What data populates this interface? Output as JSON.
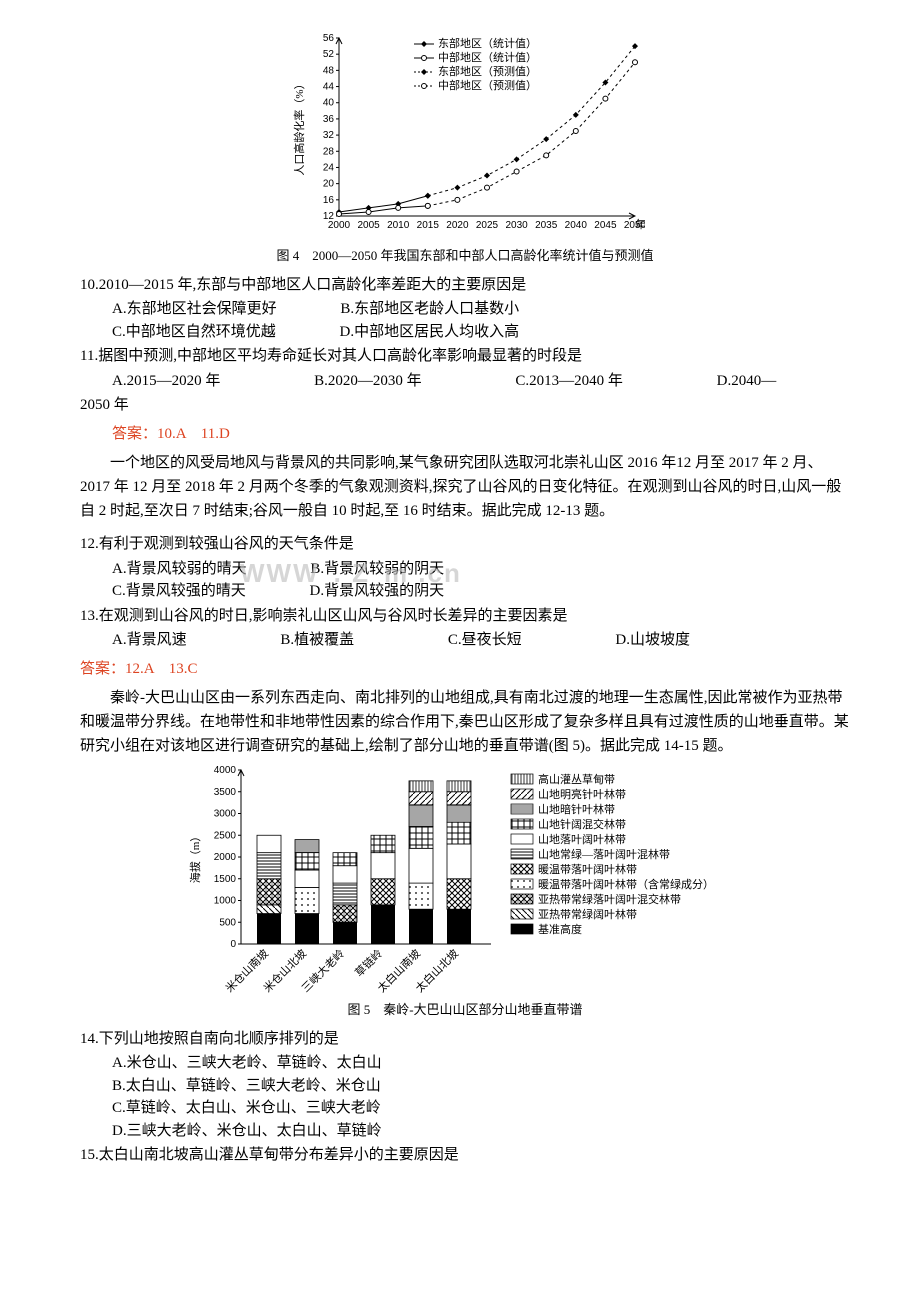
{
  "fig4": {
    "caption": "图 4　2000—2050 年我国东部和中部人口高龄化率统计值与预测值",
    "ylabel": "人口高龄化率（%）",
    "xlabel": "年",
    "x_ticks": [
      2000,
      2005,
      2010,
      2015,
      2020,
      2025,
      2030,
      2035,
      2040,
      2045,
      2050
    ],
    "y_ticks": [
      12,
      16,
      20,
      24,
      28,
      32,
      36,
      40,
      44,
      48,
      52,
      56
    ],
    "ylim": [
      12,
      56
    ],
    "xlim": [
      2000,
      2050
    ],
    "legend": [
      {
        "label": "东部地区（统计值）",
        "marker": "diamond-fill"
      },
      {
        "label": "中部地区（统计值）",
        "marker": "circle-open"
      },
      {
        "label": "东部地区（预测值）",
        "marker": "diamond-dot"
      },
      {
        "label": "中部地区（预测值）",
        "marker": "circle-dot"
      }
    ],
    "series": {
      "east_stat": {
        "x": [
          2000,
          2005,
          2010,
          2015
        ],
        "y": [
          13,
          14,
          15,
          17
        ],
        "color": "#000",
        "dash": "",
        "marker": "diamond-fill"
      },
      "mid_stat": {
        "x": [
          2000,
          2005,
          2010,
          2015
        ],
        "y": [
          12.5,
          13,
          14,
          14.5
        ],
        "color": "#000",
        "dash": "",
        "marker": "circle-open"
      },
      "east_pred": {
        "x": [
          2015,
          2020,
          2025,
          2030,
          2035,
          2040,
          2045,
          2050
        ],
        "y": [
          17,
          19,
          22,
          26,
          31,
          37,
          45,
          54
        ],
        "color": "#000",
        "dash": "3,3",
        "marker": "diamond-fill"
      },
      "mid_pred": {
        "x": [
          2015,
          2020,
          2025,
          2030,
          2035,
          2040,
          2045,
          2050
        ],
        "y": [
          14.5,
          16,
          19,
          23,
          27,
          33,
          41,
          50
        ],
        "color": "#000",
        "dash": "3,3",
        "marker": "circle-open"
      }
    },
    "plot_bg": "#ffffff",
    "axis_color": "#000"
  },
  "q10": {
    "text": "10.2010—2015 年,东部与中部地区人口高龄化率差距大的主要原因是",
    "A": "A.东部地区社会保障更好",
    "B": "B.东部地区老龄人口基数小",
    "C": "C.中部地区自然环境优越",
    "D": "D.中部地区居民人均收入高"
  },
  "q11": {
    "text": "11.据图中预测,中部地区平均寿命延长对其人口高龄化率影响最显著的时段是",
    "A": "A.2015—2020 年",
    "B": "B.2020—2030 年",
    "C": "C.2013—2040 年",
    "D": "D.2040—",
    "Dtail": "2050 年"
  },
  "ans10_11": "答案：10.A　11.D",
  "passage2": "一个地区的风受局地风与背景风的共同影响,某气象研究团队选取河北崇礼山区 2016 年12 月至 2017 年 2 月、2017 年 12 月至 2018 年 2 月两个冬季的气象观测资料,探究了山谷风的日变化特征。在观测到山谷风的时日,山风一般自 2 时起,至次日 7 时结束;谷风一般自 10 时起,至 16 时结束。据此完成 12-13 题。",
  "q12": {
    "text": "12.有利于观测到较强山谷风的天气条件是",
    "A": "A.背景风较弱的晴天",
    "B": "B.背景风较弱的阴天",
    "C": "C.背景风较强的晴天",
    "D": "D.背景风较强的阴天"
  },
  "q13": {
    "text": "13.在观测到山谷风的时日,影响崇礼山区山风与谷风时长差异的主要因素是",
    "A": "A.背景风速",
    "B": "B.植被覆盖",
    "C": "C.昼夜长短",
    "D": "D.山坡坡度"
  },
  "ans12_13": "答案：12.A　13.C",
  "watermark_left": "WWW",
  "watermark_mid": ". Z",
  "watermark_right": "m .cn",
  "passage3": "秦岭-大巴山山区由一系列东西走向、南北排列的山地组成,具有南北过渡的地理一生态属性,因此常被作为亚热带和暖温带分界线。在地带性和非地带性因素的综合作用下,秦巴山区形成了复杂多样且具有过渡性质的山地垂直带。某研究小组在对该地区进行调查研究的基础上,绘制了部分山地的垂直带谱(图 5)。据此完成 14-15 题。",
  "fig5": {
    "caption": "图 5　秦岭-大巴山山区部分山地垂直带谱",
    "ylabel": "海拔（m）",
    "y_ticks": [
      0,
      500,
      1000,
      1500,
      2000,
      2500,
      3000,
      3500,
      4000
    ],
    "x_labels": [
      "米仓山南坡",
      "米仓山北坡",
      "三峡大老岭",
      "草链岭",
      "太白山南坡",
      "太白山北坡"
    ],
    "legend": [
      "高山灌丛草甸带",
      "山地明亮针叶林带",
      "山地暗针叶林带",
      "山地针阔混交林带",
      "山地落叶阔叶林带",
      "山地常绿—落叶阔叶混林带",
      "暖温带落叶阔叶林带",
      "暖温带落叶阔叶林带（含常绿成分）",
      "亚热带常绿落叶阔叶混交林带",
      "亚热带常绿阔叶林带",
      "基准高度"
    ],
    "bars": {
      "米仓山南坡": {
        "base": 700,
        "segments": [
          {
            "top": 900,
            "pat": 10
          },
          {
            "top": 1500,
            "pat": 9
          },
          {
            "top": 2100,
            "pat": 6
          },
          {
            "top": 2500,
            "pat": 5
          }
        ]
      },
      "米仓山北坡": {
        "base": 700,
        "segments": [
          {
            "top": 1300,
            "pat": 8
          },
          {
            "top": 1700,
            "pat": 5
          },
          {
            "top": 2100,
            "pat": 4
          },
          {
            "top": 2400,
            "pat": 3
          }
        ]
      },
      "三峡大老岭": {
        "base": 500,
        "segments": [
          {
            "top": 900,
            "pat": 9
          },
          {
            "top": 1400,
            "pat": 6
          },
          {
            "top": 1800,
            "pat": 5
          },
          {
            "top": 2100,
            "pat": 4
          }
        ]
      },
      "草链岭": {
        "base": 900,
        "segments": [
          {
            "top": 1500,
            "pat": 7
          },
          {
            "top": 2100,
            "pat": 5
          },
          {
            "top": 2500,
            "pat": 4
          }
        ]
      },
      "太白山南坡": {
        "base": 800,
        "segments": [
          {
            "top": 1400,
            "pat": 8
          },
          {
            "top": 2200,
            "pat": 5
          },
          {
            "top": 2700,
            "pat": 4
          },
          {
            "top": 3200,
            "pat": 3
          },
          {
            "top": 3500,
            "pat": 2
          },
          {
            "top": 3750,
            "pat": 1
          }
        ]
      },
      "太白山北坡": {
        "base": 800,
        "segments": [
          {
            "top": 1500,
            "pat": 7
          },
          {
            "top": 2300,
            "pat": 5
          },
          {
            "top": 2800,
            "pat": 4
          },
          {
            "top": 3200,
            "pat": 3
          },
          {
            "top": 3500,
            "pat": 2
          },
          {
            "top": 3750,
            "pat": 1
          }
        ]
      }
    },
    "patterns": {
      "1": "vertical-lines",
      "2": "diagonal-bl-tr",
      "3": "horizontal-lines-dense",
      "4": "grid",
      "5": "blank",
      "6": "horizontal-lines",
      "7": "crosshatch",
      "8": "dots",
      "9": "diagonal-cross",
      "10": "diagonal-tl-br",
      "11": "solid"
    },
    "bg": "#ffffff"
  },
  "q14": {
    "text": "14.下列山地按照自南向北顺序排列的是",
    "A": "A.米仓山、三峡大老岭、草链岭、太白山",
    "B": "B.太白山、草链岭、三峡大老岭、米仓山",
    "C": "C.草链岭、太白山、米仓山、三峡大老岭",
    "D": "D.三峡大老岭、米仓山、太白山、草链岭"
  },
  "q15": {
    "text": "15.太白山南北坡高山灌丛草甸带分布差异小的主要原因是"
  }
}
